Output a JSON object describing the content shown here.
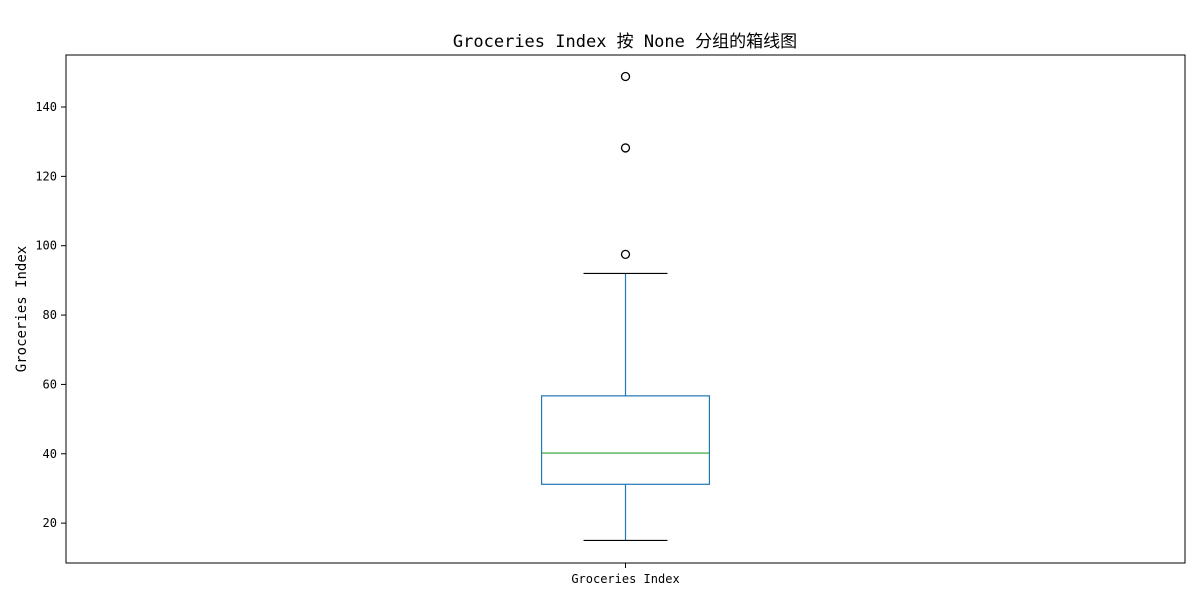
{
  "chart_data": {
    "type": "box",
    "title": "Groceries Index 按 None 分组的箱线图",
    "xlabel": "",
    "ylabel": "Groceries Index",
    "categories": [
      "Groceries Index"
    ],
    "ylim": [
      8.5,
      155
    ],
    "yticks": [
      20,
      40,
      60,
      80,
      100,
      120,
      140
    ],
    "grid": false,
    "boxes": [
      {
        "category": "Groceries Index",
        "whisker_low": 15,
        "q1": 31.2,
        "median": 40.2,
        "q3": 56.7,
        "whisker_high": 92,
        "outliers": [
          97.5,
          128.2,
          148.8
        ]
      }
    ],
    "colors": {
      "box": "#1f77b4",
      "median": "#2ca02c",
      "cap": "#000000",
      "outlier": "#000000"
    }
  }
}
